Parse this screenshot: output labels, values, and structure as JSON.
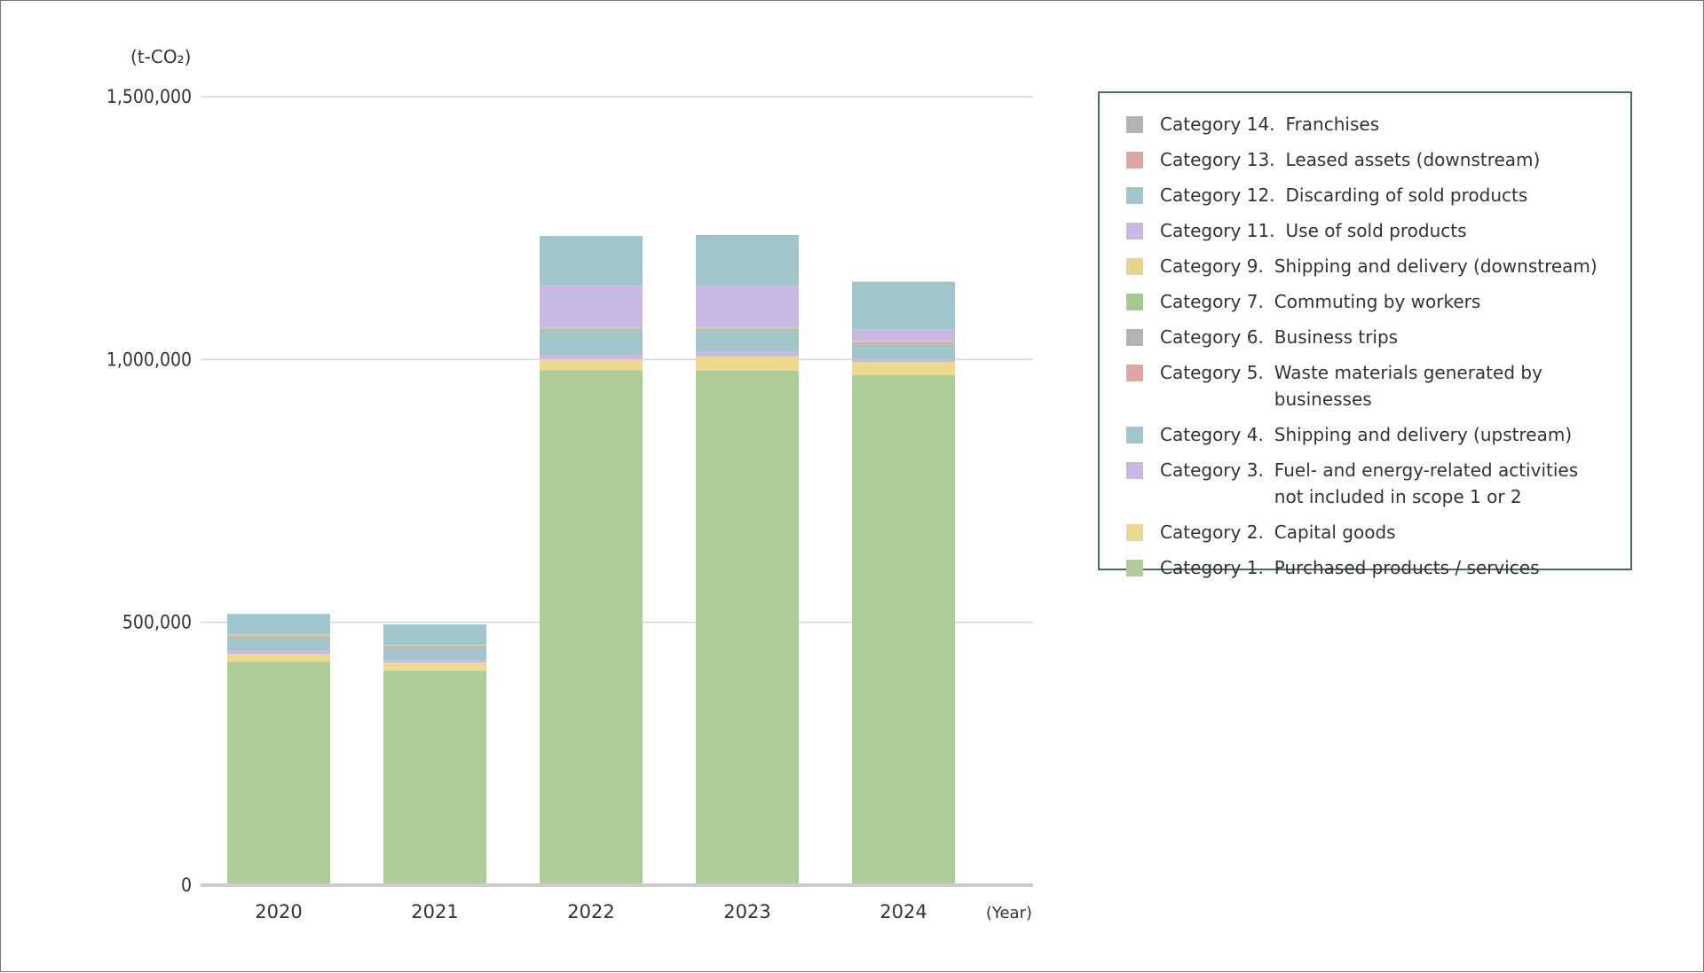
{
  "chart_data": {
    "type": "bar",
    "stacked": true,
    "unit_label": "(t-CO₂)",
    "x_unit_label": "(Year)",
    "categories": [
      "2020",
      "2021",
      "2022",
      "2023",
      "2024"
    ],
    "ylim": [
      0,
      1500000
    ],
    "y_ticks": [
      {
        "value": 0,
        "label": "0"
      },
      {
        "value": 500000,
        "label": "500,000"
      },
      {
        "value": 1000000,
        "label": "1,000,000"
      },
      {
        "value": 1500000,
        "label": "1,500,000"
      }
    ],
    "grid": true,
    "legend_position": "right",
    "series": [
      {
        "name": "Category 1. Purchased products / services",
        "cat": "Category 1.",
        "desc": "Purchased products / services",
        "color": "#adcc98",
        "values": [
          425000,
          408000,
          980000,
          979000,
          970000
        ]
      },
      {
        "name": "Category 2. Capital goods",
        "cat": "Category 2.",
        "desc": "Capital goods",
        "color": "#ecd98e",
        "values": [
          15000,
          15000,
          21000,
          27000,
          25000
        ]
      },
      {
        "name": "Category 3. Fuel- and energy-related activities not included in scope 1 or 2",
        "cat": "Category 3.",
        "desc": "Fuel- and energy-related activities not included in scope 1 or 2",
        "color": "#c9b8e3",
        "values": [
          6000,
          5000,
          8000,
          9000,
          6000
        ]
      },
      {
        "name": "Category 4. Shipping and delivery (upstream)",
        "cat": "Category 4.",
        "desc": "Shipping and delivery (upstream)",
        "color": "#9ec6cb",
        "values": [
          25000,
          23000,
          44000,
          38000,
          27000
        ]
      },
      {
        "name": "Category 5. Waste materials generated by businesses",
        "cat": "Category 5.",
        "desc": "Waste materials generated by businesses",
        "color": "#e2a3a3",
        "values": [
          2000,
          2000,
          2000,
          2000,
          2000
        ]
      },
      {
        "name": "Category 6. Business trips",
        "cat": "Category 6.",
        "desc": "Business trips",
        "color": "#b3b3b3",
        "values": [
          1000,
          1000,
          2000,
          2000,
          2000
        ]
      },
      {
        "name": "Category 7. Commuting by workers",
        "cat": "Category 7.",
        "desc": "Commuting by workers",
        "color": "#a6c98e",
        "values": [
          1500,
          1500,
          2000,
          2000,
          2000
        ]
      },
      {
        "name": "Category 9. Shipping and delivery (downstream)",
        "cat": "Category 9.",
        "desc": "Shipping and delivery (downstream)",
        "color": "#e8d48a",
        "values": [
          1000,
          1000,
          1000,
          1000,
          1000
        ]
      },
      {
        "name": "Category 11. Use of sold products",
        "cat": "Category 11.",
        "desc": "Use of sold products",
        "color": "#c9b8e3",
        "values": [
          1500,
          1500,
          82000,
          80000,
          23000
        ]
      },
      {
        "name": "Category 12. Discarding of sold products",
        "cat": "Category 12.",
        "desc": "Discarding of sold products",
        "color": "#9ec6cb",
        "values": [
          38000,
          38000,
          93000,
          97000,
          90000
        ]
      },
      {
        "name": "Category 13. Leased assets (downstream)",
        "cat": "Category 13.",
        "desc": "Leased assets (downstream)",
        "color": "#e2a3a3",
        "values": [
          0,
          0,
          0,
          0,
          0
        ]
      },
      {
        "name": "Category 14. Franchises",
        "cat": "Category 14.",
        "desc": "Franchises",
        "color": "#b3b3b3",
        "values": [
          0,
          0,
          0,
          0,
          0
        ]
      }
    ],
    "legend_order": [
      11,
      10,
      9,
      8,
      7,
      6,
      5,
      4,
      3,
      2,
      1,
      0
    ]
  }
}
